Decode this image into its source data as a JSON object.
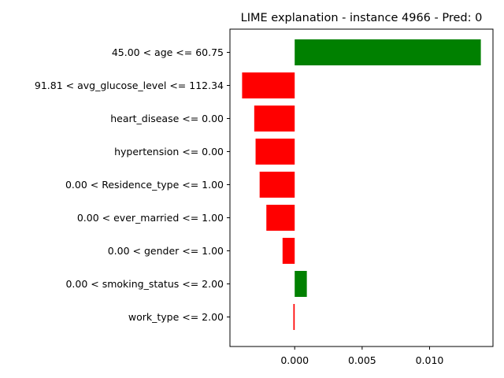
{
  "chart_data": {
    "type": "bar",
    "orientation": "horizontal",
    "title": "LIME explanation - instance 4966 - Pred: 0",
    "xlabel": "",
    "ylabel": "",
    "xlim": [
      -0.0048,
      0.0147
    ],
    "grid": false,
    "categories": [
      "45.00 < age <= 60.75",
      "91.81 < avg_glucose_level <= 112.34",
      "heart_disease <= 0.00",
      "hypertension <= 0.00",
      "0.00 < Residence_type <= 1.00",
      "0.00 < ever_married <= 1.00",
      "0.00 < gender <= 1.00",
      "0.00 < smoking_status <= 2.00",
      "work_type <= 2.00"
    ],
    "values": [
      0.0138,
      -0.0039,
      -0.003,
      -0.0029,
      -0.0026,
      -0.0021,
      -0.0009,
      0.0009,
      -0.0001
    ],
    "x_ticks": [
      0.0,
      0.005,
      0.01
    ],
    "x_tick_labels": [
      "0.000",
      "0.005",
      "0.010"
    ],
    "colors": {
      "positive": "#008000",
      "negative": "#ff0000"
    }
  }
}
